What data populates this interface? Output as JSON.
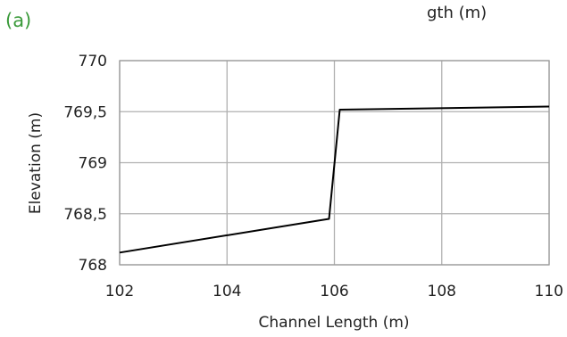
{
  "panel_label": "(a)",
  "title_fragment": "gth (m)",
  "colors": {
    "panel_label": "#3a9a3a",
    "series": "#000000",
    "grid": "#b0b0b0"
  },
  "chart_data": {
    "type": "line",
    "xlabel": "Channel Length (m)",
    "ylabel": "Elevation (m)",
    "xlim": [
      102,
      110
    ],
    "ylim": [
      768,
      770
    ],
    "x_ticks": [
      "102",
      "104",
      "106",
      "108",
      "110"
    ],
    "y_ticks": [
      "770",
      "769,5",
      "769",
      "768,5",
      "768"
    ],
    "grid": true,
    "legend": "none",
    "series": [
      {
        "x": [
          102,
          105.9,
          106.1,
          110
        ],
        "y": [
          768.12,
          768.45,
          769.52,
          769.55
        ]
      }
    ]
  }
}
